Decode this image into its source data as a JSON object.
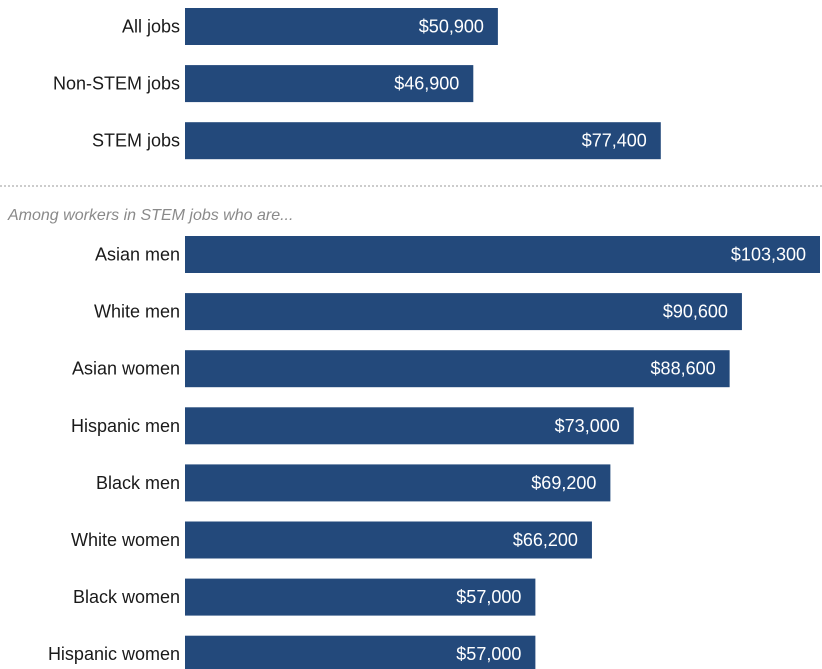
{
  "chart_data": {
    "type": "bar",
    "orientation": "horizontal",
    "bar_color": "#23497b",
    "value_label_color": "#ffffff",
    "separator_color": "#999999",
    "xlim": [
      0,
      103300
    ],
    "groups": [
      {
        "note": "",
        "categories": [
          "All jobs",
          "Non-STEM jobs",
          "STEM jobs"
        ],
        "values": [
          50900,
          46900,
          77400
        ],
        "value_labels": [
          "$50,900",
          "$46,900",
          "$77,400"
        ]
      },
      {
        "note": "Among workers in STEM jobs who are...",
        "categories": [
          "Asian men",
          "White men",
          "Asian women",
          "Hispanic men",
          "Black men",
          "White women",
          "Black women",
          "Hispanic women"
        ],
        "values": [
          103300,
          90600,
          88600,
          73000,
          69200,
          66200,
          57000,
          57000
        ],
        "value_labels": [
          "$103,300",
          "$90,600",
          "$88,600",
          "$73,000",
          "$69,200",
          "$66,200",
          "$57,000",
          "$57,000"
        ]
      }
    ]
  }
}
